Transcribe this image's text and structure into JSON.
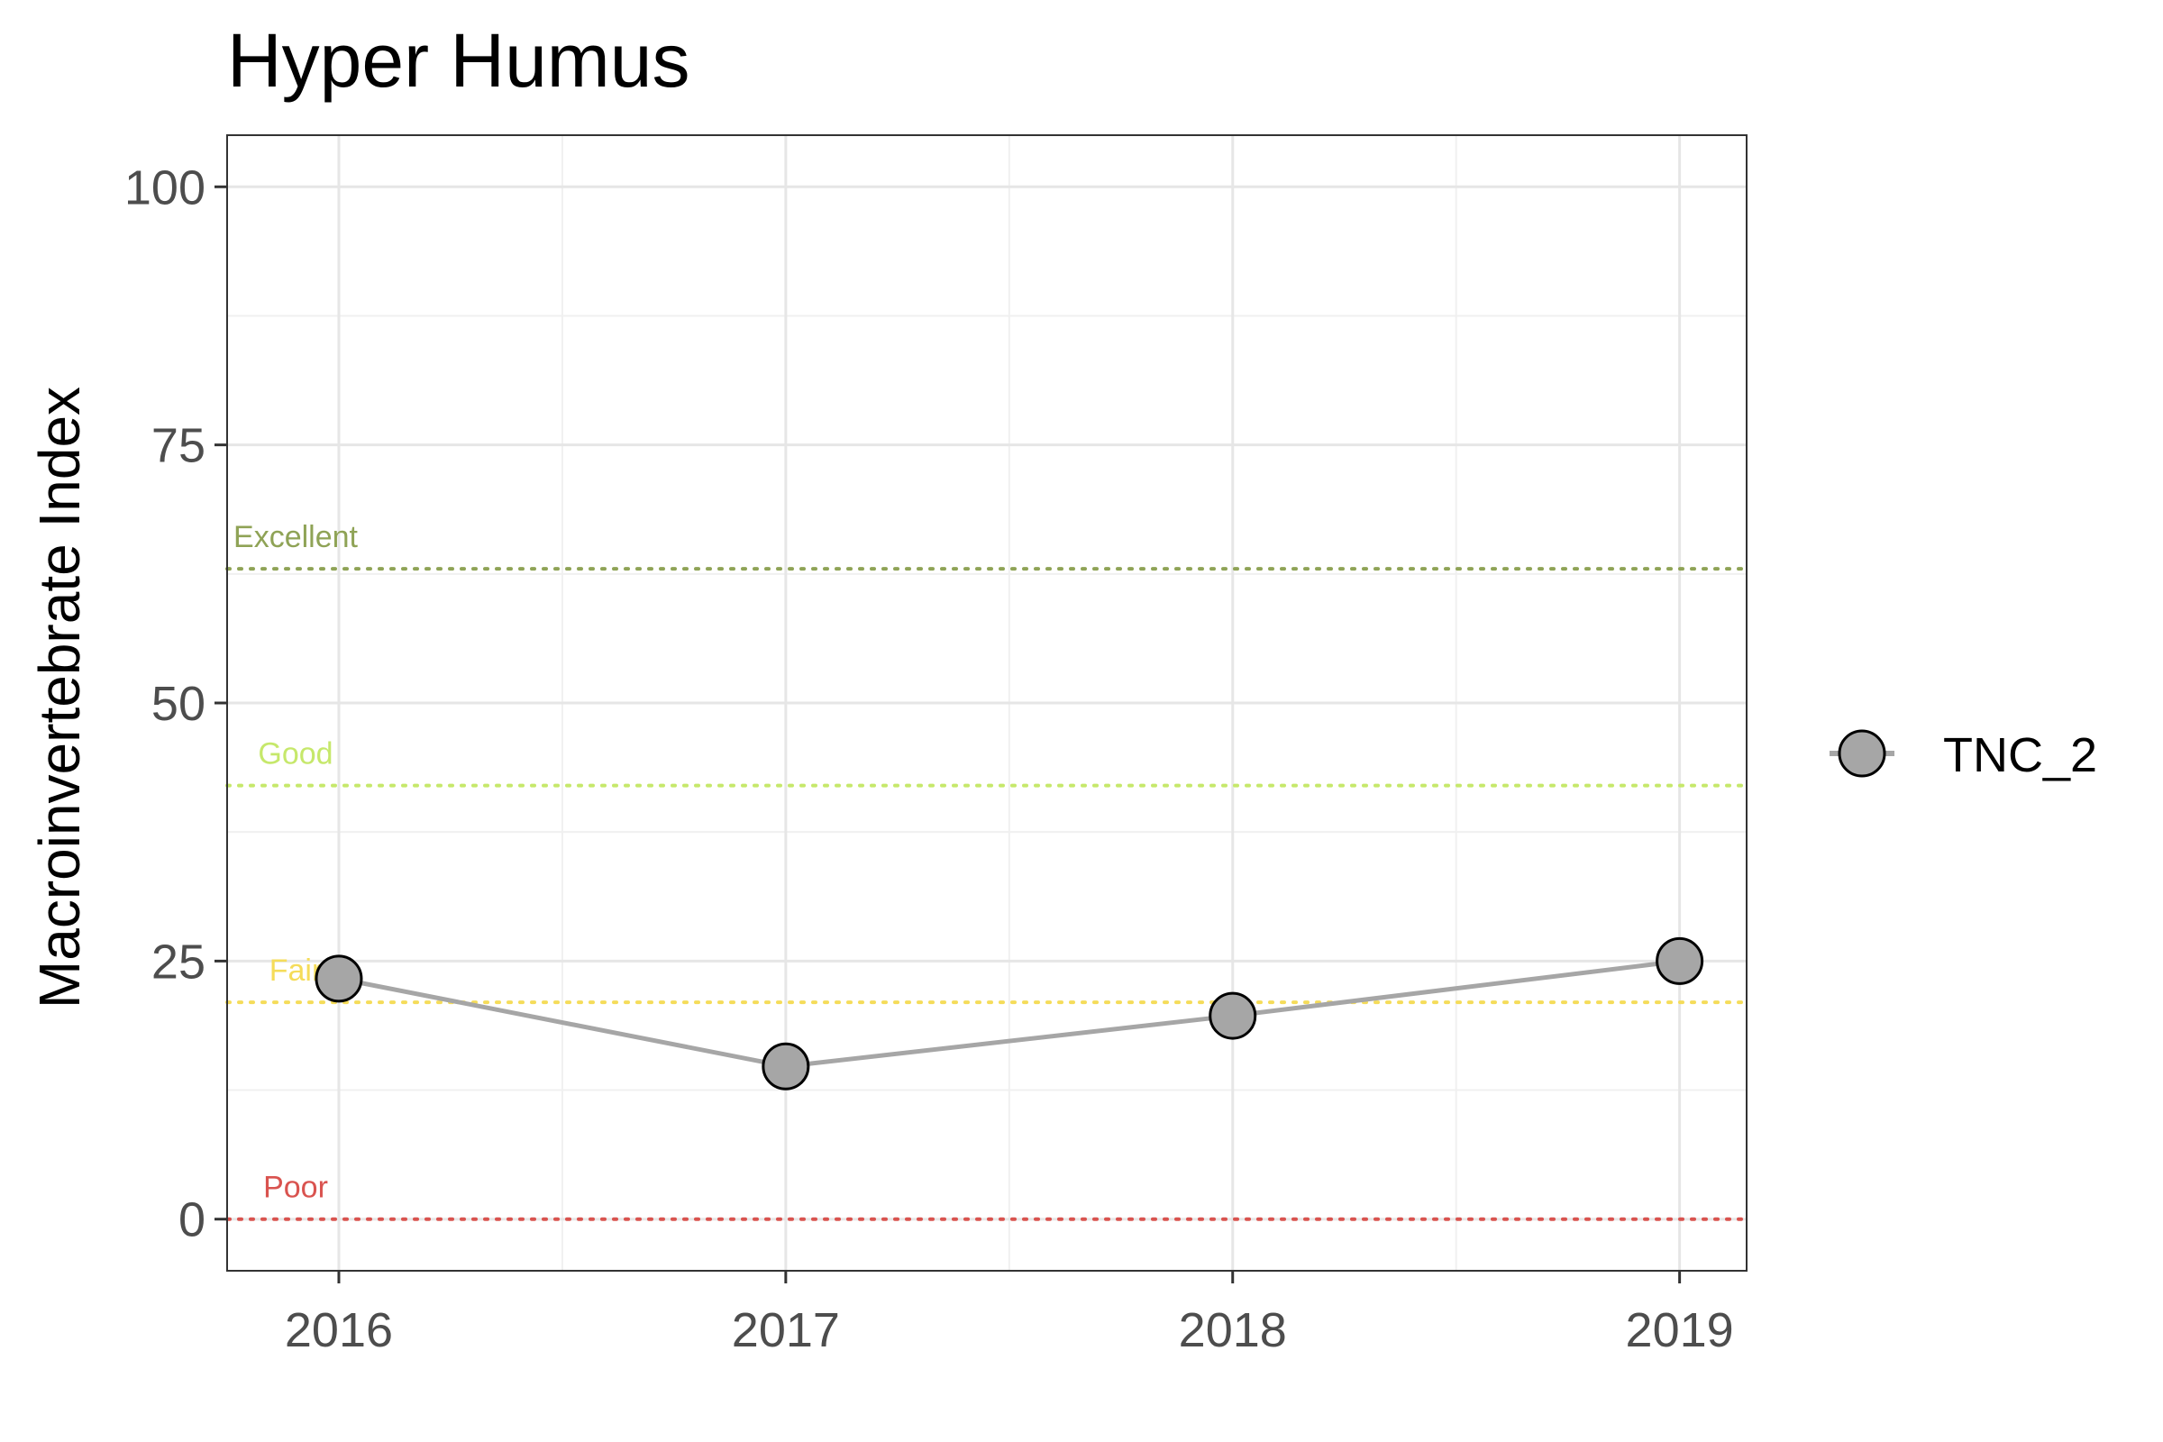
{
  "chart_data": {
    "type": "line",
    "title": "Hyper Humus",
    "xlabel": "",
    "ylabel": "Macroinvertebrate Index",
    "x": [
      2016,
      2017,
      2018,
      2019
    ],
    "x_tick_labels": [
      "2016",
      "2017",
      "2018",
      "2019"
    ],
    "xlim": [
      2015.75,
      2019.15
    ],
    "ylim": [
      -5,
      105
    ],
    "y_ticks": [
      0,
      25,
      50,
      75,
      100
    ],
    "y_tick_labels": [
      "0",
      "25",
      "50",
      "75",
      "100"
    ],
    "grid": true,
    "legend_position": "right",
    "series": [
      {
        "name": "TNC_2",
        "values": [
          23.3,
          14.8,
          19.7,
          25.0
        ],
        "color": "#a6a6a6"
      }
    ],
    "reference_lines": [
      {
        "label": "Excellent",
        "value": 63,
        "color": "#8fa356"
      },
      {
        "label": "Good",
        "value": 42,
        "color": "#c6e86b"
      },
      {
        "label": "Fair",
        "value": 21,
        "color": "#f5dc5a"
      },
      {
        "label": "Poor",
        "value": 0,
        "color": "#d9534f"
      }
    ]
  }
}
